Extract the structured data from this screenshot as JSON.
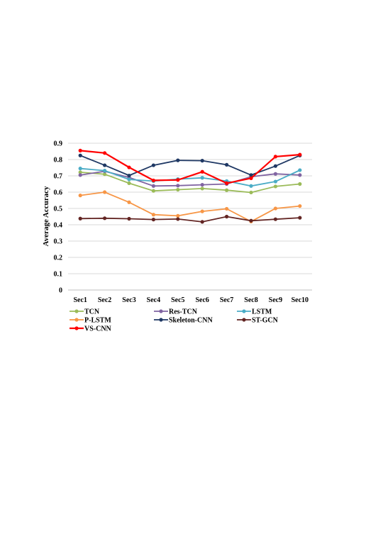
{
  "chart_data": {
    "type": "line",
    "title": "",
    "xlabel": "",
    "ylabel": "Average Accuracy",
    "ylim": [
      0,
      0.9
    ],
    "yticks": [
      "0",
      "0.1",
      "0.2",
      "0.3",
      "0.4",
      "0.5",
      "0.6",
      "0.7",
      "0.8",
      "0.9"
    ],
    "categories": [
      "Sec1",
      "Sec2",
      "Sec3",
      "Sec4",
      "Sec5",
      "Sec6",
      "Sec7",
      "Sec8",
      "Sec9",
      "Sec10"
    ],
    "grid": true,
    "legend_position": "bottom",
    "series": [
      {
        "name": "TCN",
        "color": "#9BBB59",
        "values": [
          0.722,
          0.71,
          0.655,
          0.608,
          0.615,
          0.622,
          0.612,
          0.598,
          0.635,
          0.65
        ]
      },
      {
        "name": "Res-TCN",
        "color": "#8064A2",
        "values": [
          0.705,
          0.728,
          0.69,
          0.638,
          0.64,
          0.645,
          0.65,
          0.695,
          0.712,
          0.705
        ]
      },
      {
        "name": "LSTM",
        "color": "#4BACC6",
        "values": [
          0.745,
          0.732,
          0.678,
          0.668,
          0.68,
          0.688,
          0.668,
          0.638,
          0.665,
          0.735
        ]
      },
      {
        "name": "P-LSTM",
        "color": "#F79646",
        "values": [
          0.58,
          0.6,
          0.538,
          0.462,
          0.455,
          0.482,
          0.498,
          0.42,
          0.5,
          0.515
        ]
      },
      {
        "name": "Skeleton-CNN",
        "color": "#1F3864",
        "values": [
          0.825,
          0.765,
          0.702,
          0.765,
          0.795,
          0.793,
          0.768,
          0.705,
          0.76,
          0.825
        ]
      },
      {
        "name": "ST-GCN",
        "color": "#632523",
        "values": [
          0.438,
          0.44,
          0.437,
          0.432,
          0.435,
          0.418,
          0.45,
          0.425,
          0.434,
          0.443
        ]
      },
      {
        "name": "VS-CNN",
        "color": "#FF0000",
        "values": [
          0.855,
          0.84,
          0.752,
          0.672,
          0.675,
          0.725,
          0.655,
          0.685,
          0.818,
          0.83
        ]
      }
    ]
  }
}
